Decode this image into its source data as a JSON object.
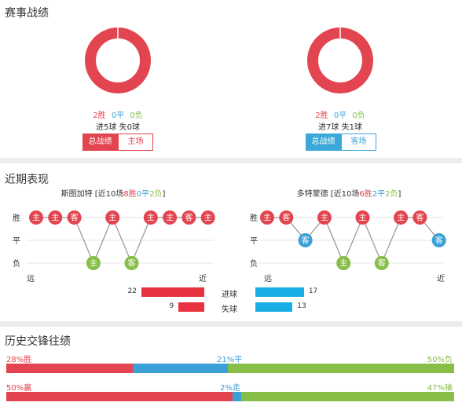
{
  "colors": {
    "win": "#e2454f",
    "draw": "#3aa0d8",
    "loss": "#86be48",
    "home_bar": "#e8323f",
    "away_bar": "#1aaee6"
  },
  "record": {
    "title": "赛事战绩",
    "home": {
      "win": "2胜",
      "draw": "0平",
      "loss": "0负",
      "goals": "进5球 失0球",
      "btn_total": "总战绩",
      "btn_venue": "主场"
    },
    "away": {
      "win": "2胜",
      "draw": "0平",
      "loss": "0负",
      "goals": "进7球 失1球",
      "btn_total": "总战绩",
      "btn_venue": "客场"
    }
  },
  "form": {
    "title": "近期表现",
    "y_labels": {
      "win": "胜",
      "draw": "平",
      "loss": "负"
    },
    "x_labels": {
      "far": "远",
      "near": "近"
    },
    "home": {
      "team": "斯图加特",
      "summary_prefix": " [近10场",
      "wins": "8胜",
      "draws": "0平",
      "losses": "2负",
      "summary_suffix": "]",
      "games": [
        {
          "result": "W",
          "venue": "主"
        },
        {
          "result": "W",
          "venue": "主"
        },
        {
          "result": "W",
          "venue": "客"
        },
        {
          "result": "L",
          "venue": "主"
        },
        {
          "result": "W",
          "venue": "主"
        },
        {
          "result": "L",
          "venue": "客"
        },
        {
          "result": "W",
          "venue": "主"
        },
        {
          "result": "W",
          "venue": "主"
        },
        {
          "result": "W",
          "venue": "客"
        },
        {
          "result": "W",
          "venue": "主"
        }
      ]
    },
    "away": {
      "team": "多特蒙德",
      "summary_prefix": " [近10场",
      "wins": "6胜",
      "draws": "2平",
      "losses": "2负",
      "summary_suffix": "]",
      "games": [
        {
          "result": "W",
          "venue": "主"
        },
        {
          "result": "W",
          "venue": "客"
        },
        {
          "result": "D",
          "venue": "客"
        },
        {
          "result": "W",
          "venue": "主"
        },
        {
          "result": "L",
          "venue": "主"
        },
        {
          "result": "W",
          "venue": "主"
        },
        {
          "result": "L",
          "venue": "客"
        },
        {
          "result": "W",
          "venue": "主"
        },
        {
          "result": "W",
          "venue": "客"
        },
        {
          "result": "D",
          "venue": "客"
        }
      ]
    },
    "goals": {
      "label": "进球",
      "home": 22,
      "away": 17
    },
    "conceded": {
      "label": "失球",
      "home": 9,
      "away": 13
    }
  },
  "history": {
    "title": "历史交锋往绩",
    "row1": {
      "win": "28%胜",
      "draw": "21%平",
      "loss": "50%负",
      "win_pct": 28,
      "draw_pct": 21,
      "loss_pct": 50
    },
    "row2": {
      "win": "50%赢",
      "draw": "2%走",
      "loss": "47%输",
      "win_pct": 50,
      "draw_pct": 2,
      "loss_pct": 47
    }
  }
}
